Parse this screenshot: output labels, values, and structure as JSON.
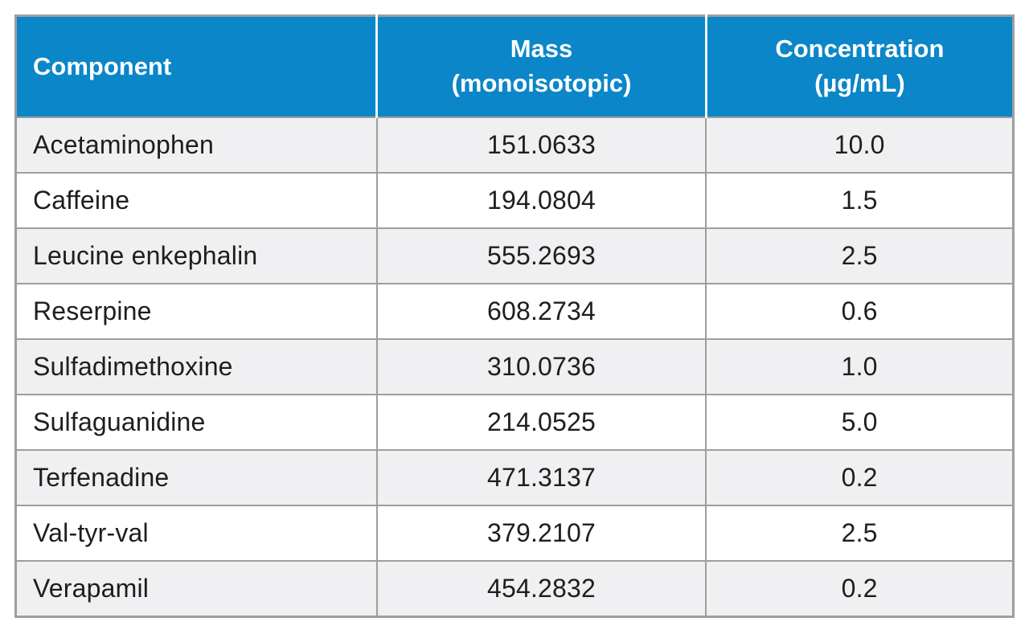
{
  "colors": {
    "header_bg": "#0b86c8",
    "header_text": "#ffffff",
    "row_alt_bg": "#f0f0f2",
    "row_bg": "#ffffff",
    "grid_border": "#9e9e9e",
    "body_text": "#1e1e1e"
  },
  "table": {
    "header": {
      "component": "Component",
      "mass_line1": "Mass",
      "mass_line2": "(monoisotopic)",
      "concentration_line1": "Concentration",
      "concentration_line2": "(µg/mL)"
    },
    "rows": [
      {
        "component": "Acetaminophen",
        "mass": "151.0633",
        "concentration": "10.0"
      },
      {
        "component": "Caffeine",
        "mass": "194.0804",
        "concentration": "1.5"
      },
      {
        "component": "Leucine enkephalin",
        "mass": "555.2693",
        "concentration": "2.5"
      },
      {
        "component": "Reserpine",
        "mass": "608.2734",
        "concentration": "0.6"
      },
      {
        "component": "Sulfadimethoxine",
        "mass": "310.0736",
        "concentration": "1.0"
      },
      {
        "component": "Sulfaguanidine",
        "mass": "214.0525",
        "concentration": "5.0"
      },
      {
        "component": "Terfenadine",
        "mass": "471.3137",
        "concentration": "0.2"
      },
      {
        "component": "Val-tyr-val",
        "mass": "379.2107",
        "concentration": "2.5"
      },
      {
        "component": "Verapamil",
        "mass": "454.2832",
        "concentration": "0.2"
      }
    ]
  },
  "chart_data": {
    "type": "table",
    "title": "",
    "columns": [
      "Component",
      "Mass (monoisotopic)",
      "Concentration (µg/mL)"
    ],
    "rows": [
      [
        "Acetaminophen",
        151.0633,
        10.0
      ],
      [
        "Caffeine",
        194.0804,
        1.5
      ],
      [
        "Leucine enkephalin",
        555.2693,
        2.5
      ],
      [
        "Reserpine",
        608.2734,
        0.6
      ],
      [
        "Sulfadimethoxine",
        310.0736,
        1.0
      ],
      [
        "Sulfaguanidine",
        214.0525,
        5.0
      ],
      [
        "Terfenadine",
        471.3137,
        0.2
      ],
      [
        "Val-tyr-val",
        379.2107,
        2.5
      ],
      [
        "Verapamil",
        454.2832,
        0.2
      ]
    ],
    "layout": {
      "header_fill": "#0b86c8",
      "alternating_rows": true,
      "grid": true
    }
  }
}
